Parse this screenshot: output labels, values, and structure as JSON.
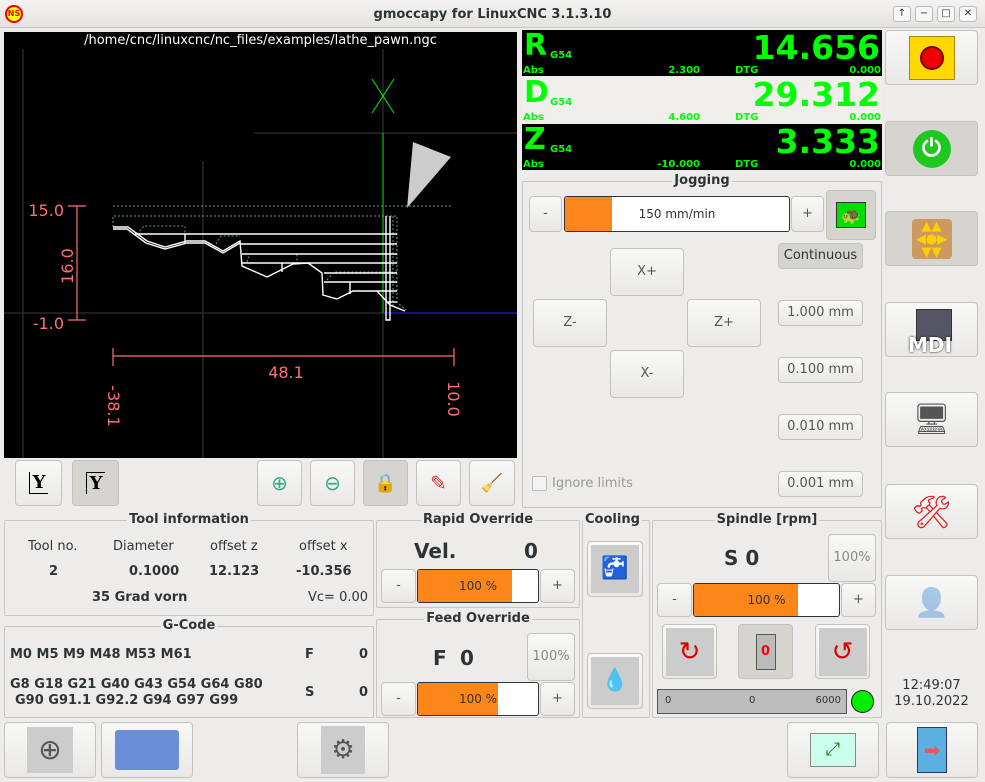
{
  "window": {
    "title": "gmoccapy for LinuxCNC  3.1.3.10",
    "controls": [
      "↑",
      "−",
      "□",
      "✕"
    ]
  },
  "preview": {
    "file_path": "/home/cnc/linuxcnc/nc_files/examples/lathe_pawn.ngc",
    "dim_top": "15.0",
    "dim_bottom": "-1.0",
    "dim_height": "16.0",
    "dim_width": "48.1",
    "dim_left": "-38.1",
    "dim_right": "10.0"
  },
  "preview_toolbar": {
    "view_y": "Y",
    "view_y2": "Y"
  },
  "dro": [
    {
      "axis": "R",
      "coord": "G54",
      "value": "14.656",
      "abs_label": "Abs",
      "abs": "2.300",
      "dtg_label": "DTG",
      "dtg": "0.000"
    },
    {
      "axis": "D",
      "coord": "G54",
      "value": "29.312",
      "abs_label": "Abs",
      "abs": "4.600",
      "dtg_label": "DTG",
      "dtg": "0.000"
    },
    {
      "axis": "Z",
      "coord": "G54",
      "value": "3.333",
      "abs_label": "Abs",
      "abs": "-10.000",
      "dtg_label": "DTG",
      "dtg": "0.000"
    }
  ],
  "jogging": {
    "title": "Jogging",
    "minus": "-",
    "plus": "+",
    "speed": "150 mm/min",
    "speed_fraction": 0.3,
    "x_plus": "X+",
    "x_minus": "X-",
    "z_plus": "Z+",
    "z_minus": "Z-",
    "increments": [
      "Continuous",
      "1.000 mm",
      "0.100 mm",
      "0.010 mm",
      "0.001 mm"
    ],
    "ignore_limits": "Ignore limits"
  },
  "sidebar": {
    "time": "12:49:07",
    "date": "19.10.2022",
    "mdi": "MDI"
  },
  "tool_info": {
    "title": "Tool information",
    "headers": [
      "Tool no.",
      "Diameter",
      "offset z",
      "offset x"
    ],
    "values": [
      "2",
      "0.1000",
      "12.123",
      "-10.356"
    ],
    "description": "35 Grad vorn",
    "vc": "Vc= 0.00"
  },
  "gcode": {
    "title": "G-Code",
    "mcodes": "M0 M5 M9 M48 M53 M61",
    "gcodes_1": "G8 G18 G21 G40 G43 G54 G64 G80",
    "gcodes_2": "G90 G91.1 G92.2 G94 G97 G99",
    "f_label": "F",
    "f_value": "0",
    "s_label": "S",
    "s_value": "0"
  },
  "rapid_override": {
    "title": "Rapid Override",
    "vel_label": "Vel.",
    "vel_value": "0",
    "percent": "100 %",
    "fraction": 0.78,
    "minus": "-",
    "plus": "+"
  },
  "feed_override": {
    "title": "Feed Override",
    "f_label": "F",
    "f_value": "0",
    "reset": "100%",
    "percent": "100 %",
    "fraction": 0.67,
    "minus": "-",
    "plus": "+"
  },
  "cooling": {
    "title": "Cooling"
  },
  "spindle": {
    "title": "Spindle [rpm]",
    "s_display": "S 0",
    "reset": "100%",
    "percent": "100 %",
    "fraction": 0.72,
    "minus": "-",
    "plus": "+",
    "stop_label": "0",
    "gauge_min": "0",
    "gauge_value": "0",
    "gauge_max": "6000",
    "status_color": "#00ee00"
  },
  "colors": {
    "dro_green": "#00ff00",
    "orange": "#fd861b",
    "dim_red": "#ff7070"
  }
}
